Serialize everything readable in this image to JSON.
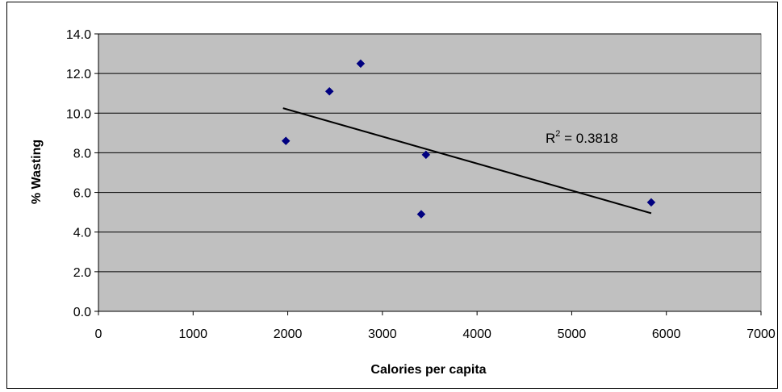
{
  "chart_data": {
    "type": "scatter",
    "xlabel": "Calories per capita",
    "ylabel": "% Wasting",
    "xlim": [
      0,
      7000
    ],
    "ylim": [
      0,
      14
    ],
    "x_ticks": [
      "0",
      "1000",
      "2000",
      "3000",
      "4000",
      "5000",
      "6000",
      "7000"
    ],
    "y_ticks": [
      "0.0",
      "2.0",
      "4.0",
      "6.0",
      "8.0",
      "10.0",
      "12.0",
      "14.0"
    ],
    "points": [
      {
        "x": 1980,
        "y": 8.6
      },
      {
        "x": 2440,
        "y": 11.1
      },
      {
        "x": 2770,
        "y": 12.5
      },
      {
        "x": 3410,
        "y": 4.9
      },
      {
        "x": 3460,
        "y": 7.9
      },
      {
        "x": 5840,
        "y": 5.5
      }
    ],
    "trendline": {
      "x": [
        1950,
        5840
      ],
      "y": [
        10.25,
        4.95
      ]
    },
    "annotation": {
      "r_label": "R",
      "r_sup": "2",
      "r_rest": " = 0.3818"
    },
    "grid": true,
    "plot_background": "#c0c0c0",
    "marker_color": "#000080",
    "trendline_color": "#000000"
  }
}
